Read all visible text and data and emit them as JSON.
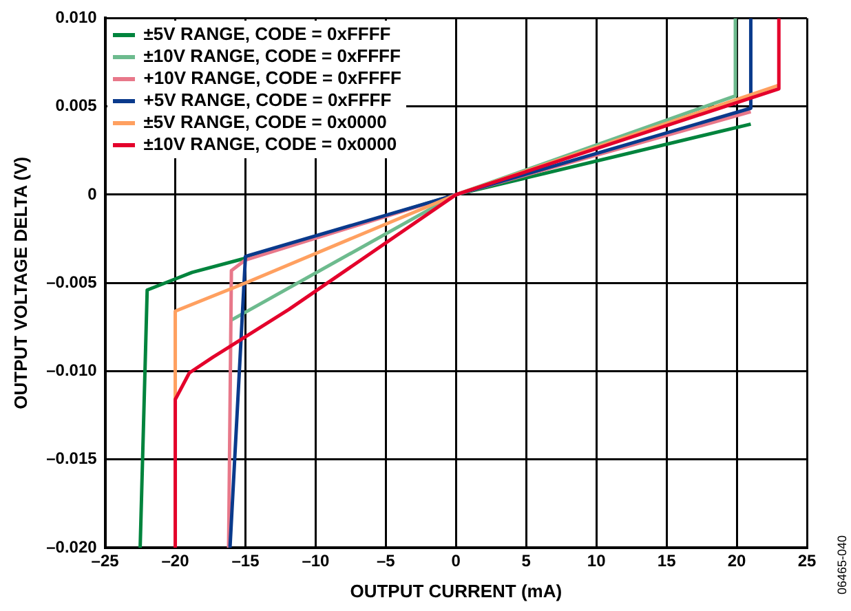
{
  "chart_data": {
    "type": "line",
    "xlabel": "OUTPUT CURRENT (mA)",
    "ylabel": "OUTPUT VOLTAGE DELTA (V)",
    "xlim": [
      -25,
      25
    ],
    "ylim": [
      -0.02,
      0.01
    ],
    "xticks": [
      {
        "value": -25,
        "label": "–25"
      },
      {
        "value": -20,
        "label": "–20"
      },
      {
        "value": -15,
        "label": "–15"
      },
      {
        "value": -10,
        "label": "–10"
      },
      {
        "value": -5,
        "label": "–5"
      },
      0,
      5,
      10,
      15,
      20,
      25
    ],
    "yticks": [
      {
        "value": -0.02,
        "label": "–0.020"
      },
      {
        "value": -0.015,
        "label": "–0.015"
      },
      {
        "value": -0.01,
        "label": "–0.010"
      },
      {
        "value": -0.005,
        "label": "–0.005"
      },
      0,
      {
        "value": 0.005,
        "label": "0.005"
      },
      {
        "value": 0.01,
        "label": "0.010"
      }
    ],
    "grid": true,
    "legend": "top left",
    "marker": "none",
    "line_style": "solid",
    "annotations": [
      "06465-040"
    ],
    "series": [
      {
        "name": "±5V RANGE, CODE = 0xFFFF",
        "color": "#00843d",
        "x": [
          -22.5,
          -22,
          -18.8,
          -15,
          0,
          21
        ],
        "values": [
          -0.02,
          -0.0054,
          -0.0044,
          -0.0036,
          0,
          0.004
        ]
      },
      {
        "name": "±10V RANGE, CODE = 0xFFFF",
        "color": "#6dbb8e",
        "x": [
          -16,
          0,
          19.9,
          19.9
        ],
        "values": [
          -0.0071,
          0,
          0.0056,
          0.01
        ]
      },
      {
        "name": "+10V RANGE, CODE = 0xFFFF",
        "color": "#e8788a",
        "x": [
          -16.2,
          -16,
          -15,
          0,
          21
        ],
        "values": [
          -0.02,
          -0.0043,
          -0.0037,
          0,
          0.0047
        ]
      },
      {
        "name": "+5V RANGE, CODE = 0xFFFF",
        "color": "#0a3a8c",
        "x": [
          -16.1,
          -15,
          0,
          21,
          21
        ],
        "values": [
          -0.02,
          -0.0035,
          0,
          0.0049,
          0.01
        ]
      },
      {
        "name": "±5V RANGE, CODE = 0x0000",
        "color": "#ffa060",
        "x": [
          -20,
          -20,
          -15,
          0,
          23
        ],
        "values": [
          -0.0116,
          -0.0066,
          -0.005,
          0,
          0.0062
        ]
      },
      {
        "name": "±10V RANGE, CODE = 0x0000",
        "color": "#e4002b",
        "x": [
          -20,
          -20,
          -19,
          -17.3,
          -11.9,
          0,
          23,
          23
        ],
        "values": [
          -0.02,
          -0.0116,
          -0.0101,
          -0.0092,
          -0.0065,
          0,
          0.006,
          0.01
        ]
      }
    ]
  }
}
